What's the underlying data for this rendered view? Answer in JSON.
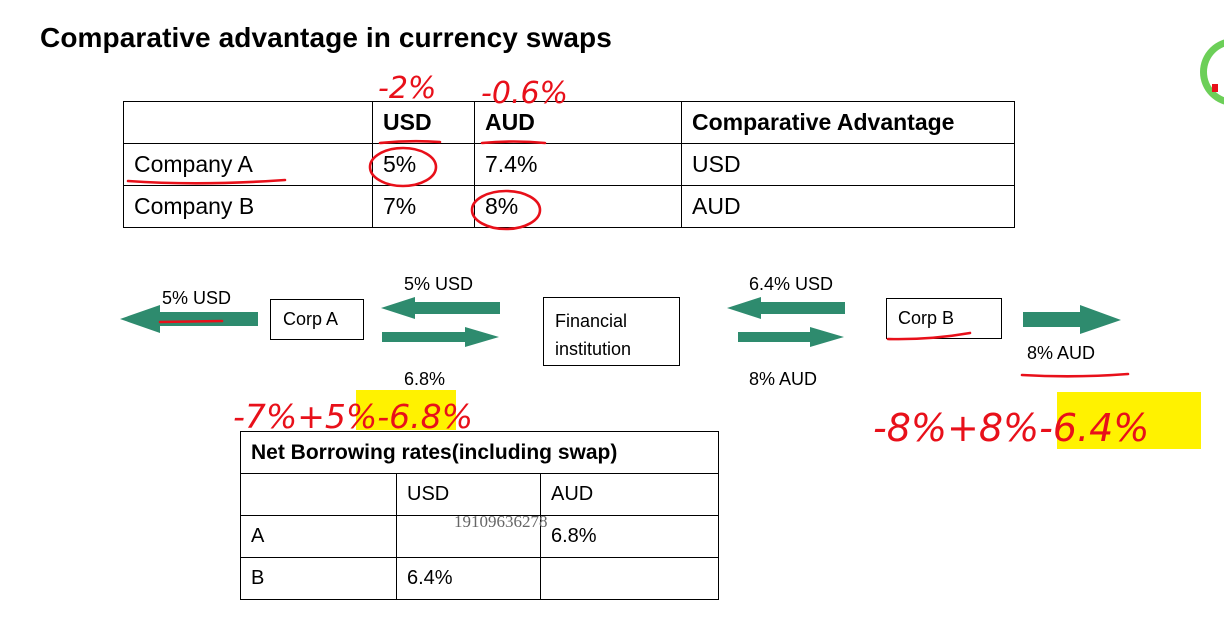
{
  "title": "Comparative advantage in  currency swaps",
  "rates_table": {
    "headers": [
      "",
      "USD",
      "AUD",
      "Comparative Advantage"
    ],
    "rows": [
      [
        "Company A",
        "5%",
        "7.4%",
        "USD"
      ],
      [
        "Company B",
        "7%",
        "8%",
        "AUD"
      ]
    ]
  },
  "diagram": {
    "corp_a": "Corp A",
    "corp_b": "Corp B",
    "financial_institution": "Financial institution",
    "left_outer_label": "5% USD",
    "left_top_label": "5% USD",
    "left_bottom_label": "6.8%",
    "right_top_label": "6.4% USD",
    "right_bottom_label": "8% AUD",
    "right_outer_label": "8% AUD",
    "arrow_color": "#2e8b6e"
  },
  "net_table": {
    "title": "Net Borrowing rates(including swap)",
    "headers": [
      "",
      "USD",
      "AUD"
    ],
    "rows": [
      [
        "A",
        "",
        "6.8%"
      ],
      [
        "B",
        "6.4%",
        ""
      ]
    ]
  },
  "handwriting": {
    "above_usd": "-2%",
    "above_aud": "-0.6%",
    "left_calc": "-7%+5%-6.8%",
    "right_calc": "-8%+8%-6.4%",
    "ink_color": "#e8101a",
    "highlight_color": "#fff200"
  },
  "watermark": "19109636278"
}
